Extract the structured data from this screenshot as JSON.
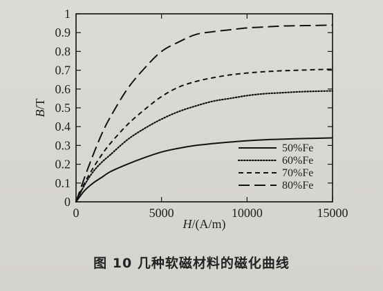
{
  "chart_data": {
    "type": "line",
    "title": "",
    "xlabel": "H/(A/m)",
    "ylabel": "B/T",
    "xlim": [
      0,
      15000
    ],
    "ylim": [
      0,
      1
    ],
    "x_ticks": [
      0,
      5000,
      10000,
      15000
    ],
    "x_tick_labels": [
      "0",
      "5000",
      "10000",
      "15000"
    ],
    "y_ticks": [
      0,
      0.1,
      0.2,
      0.3,
      0.4,
      0.5,
      0.6,
      0.7,
      0.8,
      0.9,
      1
    ],
    "y_tick_labels": [
      "0",
      "0.1",
      "0.2",
      "0.3",
      "0.4",
      "0.5",
      "0.6",
      "0.7",
      "0.8",
      "0.9",
      "1"
    ],
    "grid": false,
    "legend_position": "bottom-right",
    "series": [
      {
        "name": "50%Fe",
        "style": "solid",
        "color": "#111111",
        "x": [
          0,
          500,
          1000,
          1500,
          2000,
          3000,
          4000,
          5000,
          6000,
          7000,
          8000,
          9000,
          10000,
          11000,
          12000,
          13000,
          14000,
          15000
        ],
        "y": [
          0,
          0.06,
          0.1,
          0.13,
          0.16,
          0.2,
          0.235,
          0.265,
          0.285,
          0.3,
          0.31,
          0.318,
          0.325,
          0.33,
          0.333,
          0.336,
          0.338,
          0.34
        ]
      },
      {
        "name": "60%Fe",
        "style": "dotted",
        "color": "#111111",
        "x": [
          0,
          500,
          1000,
          1500,
          2000,
          3000,
          4000,
          5000,
          6000,
          7000,
          8000,
          9000,
          10000,
          11000,
          12000,
          13000,
          14000,
          15000
        ],
        "y": [
          0,
          0.09,
          0.16,
          0.21,
          0.25,
          0.33,
          0.39,
          0.44,
          0.48,
          0.51,
          0.535,
          0.55,
          0.565,
          0.575,
          0.58,
          0.585,
          0.588,
          0.59
        ]
      },
      {
        "name": "70%Fe",
        "style": "short-dash",
        "color": "#111111",
        "x": [
          0,
          500,
          1000,
          1500,
          2000,
          3000,
          4000,
          5000,
          6000,
          7000,
          8000,
          9000,
          10000,
          11000,
          12000,
          13000,
          14000,
          15000
        ],
        "y": [
          0,
          0.1,
          0.18,
          0.25,
          0.31,
          0.41,
          0.49,
          0.56,
          0.61,
          0.64,
          0.66,
          0.675,
          0.685,
          0.692,
          0.697,
          0.7,
          0.703,
          0.705
        ]
      },
      {
        "name": "80%Fe",
        "style": "long-dash",
        "color": "#111111",
        "x": [
          0,
          500,
          1000,
          1500,
          2000,
          3000,
          4000,
          5000,
          6000,
          7000,
          8000,
          9000,
          10000,
          11000,
          12000,
          13000,
          14000,
          15000
        ],
        "y": [
          0,
          0.13,
          0.25,
          0.36,
          0.45,
          0.6,
          0.71,
          0.8,
          0.85,
          0.89,
          0.905,
          0.915,
          0.925,
          0.93,
          0.935,
          0.937,
          0.938,
          0.94
        ]
      }
    ]
  },
  "caption": {
    "text": "图 10   几种软磁材料的磁化曲线"
  }
}
